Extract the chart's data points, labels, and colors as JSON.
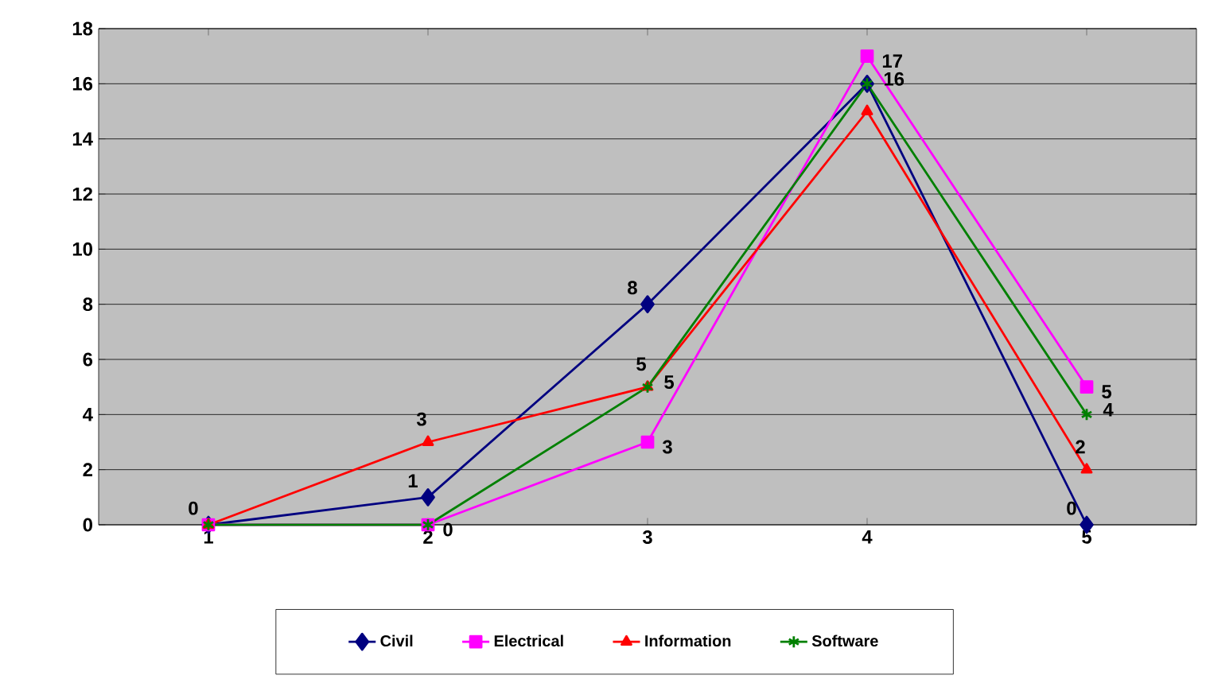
{
  "chart_data": {
    "type": "line",
    "categories": [
      "1",
      "2",
      "3",
      "4",
      "5"
    ],
    "series": [
      {
        "name": "Civil",
        "color": "#000080",
        "marker": "diamond",
        "values": [
          0,
          1,
          8,
          16,
          0
        ],
        "value_labels": [
          "0",
          "1",
          "8",
          null,
          "0"
        ]
      },
      {
        "name": "Electrical",
        "color": "#ff00ff",
        "marker": "square",
        "values": [
          0,
          0,
          3,
          17,
          5
        ],
        "value_labels": [
          null,
          "0",
          "3",
          "17",
          "5"
        ]
      },
      {
        "name": "Information",
        "color": "#ff0000",
        "marker": "triangle",
        "values": [
          0,
          3,
          5,
          15,
          2
        ],
        "value_labels": [
          null,
          "3",
          "5",
          null,
          "2"
        ]
      },
      {
        "name": "Software",
        "color": "#008000",
        "marker": "cross",
        "values": [
          0,
          0,
          5,
          16,
          4
        ],
        "value_labels": [
          null,
          null,
          "5",
          "16",
          "4"
        ]
      }
    ],
    "ylim": [
      0,
      18
    ],
    "yticks": [
      0,
      2,
      4,
      6,
      8,
      10,
      12,
      14,
      16,
      18
    ],
    "grid": "y",
    "legend": "bottom"
  }
}
